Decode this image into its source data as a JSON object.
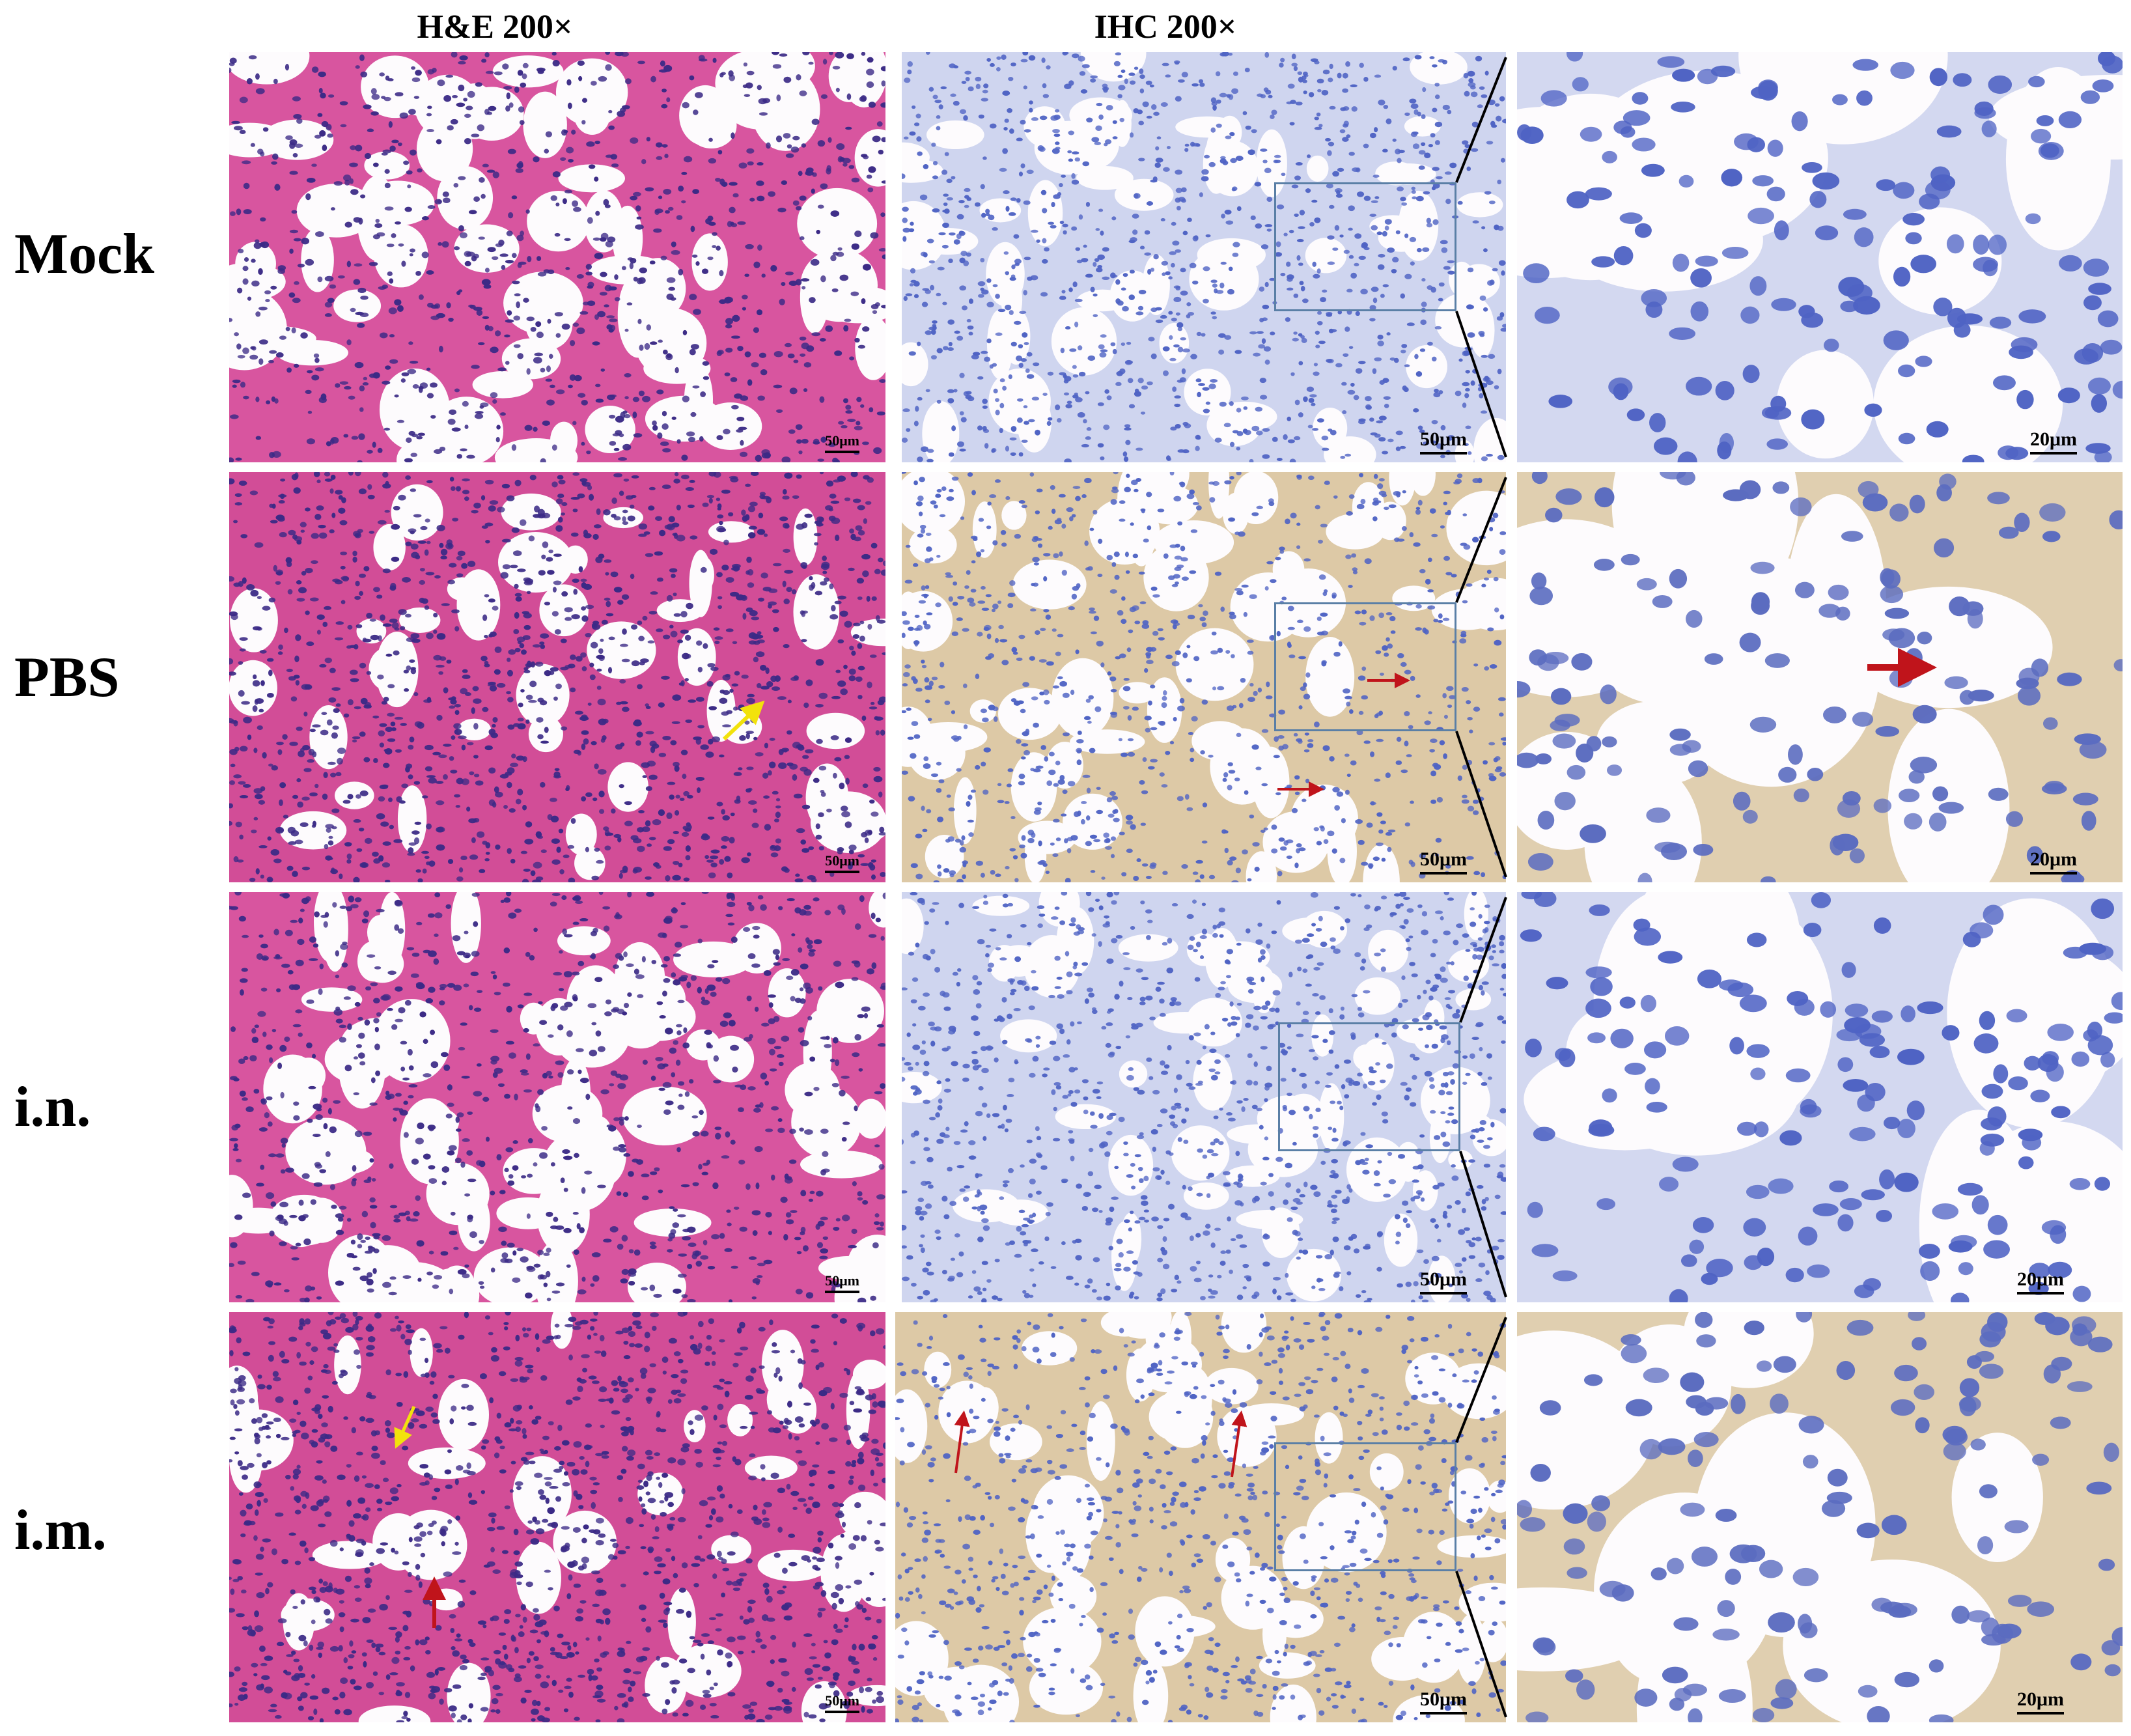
{
  "headers": {
    "he": "H&E 200×",
    "ihc": "IHC 200×"
  },
  "rows": [
    {
      "label": "Mock",
      "scale_main": "50μm",
      "scale_zoom": "20μm",
      "he_scale": "50μm"
    },
    {
      "label": "PBS",
      "scale_main": "50μm",
      "scale_zoom": "20μm",
      "he_scale": "50μm"
    },
    {
      "label": "i.n.",
      "scale_main": "50μm",
      "scale_zoom": "20μm",
      "he_scale": "50μm"
    },
    {
      "label": "i.m.",
      "scale_main": "50μm",
      "scale_zoom": "20μm",
      "he_scale": "50μm"
    }
  ],
  "colors": {
    "he_tissue": "#c9418f",
    "he_nuclei": "#3b2a86",
    "ihc_nuclei": "#4f63c4",
    "ihc_positive": "#c9ae8a",
    "arrow_red": "#c0141b",
    "arrow_yellow": "#f2e20c",
    "roi_box": "#5a7fa6"
  }
}
